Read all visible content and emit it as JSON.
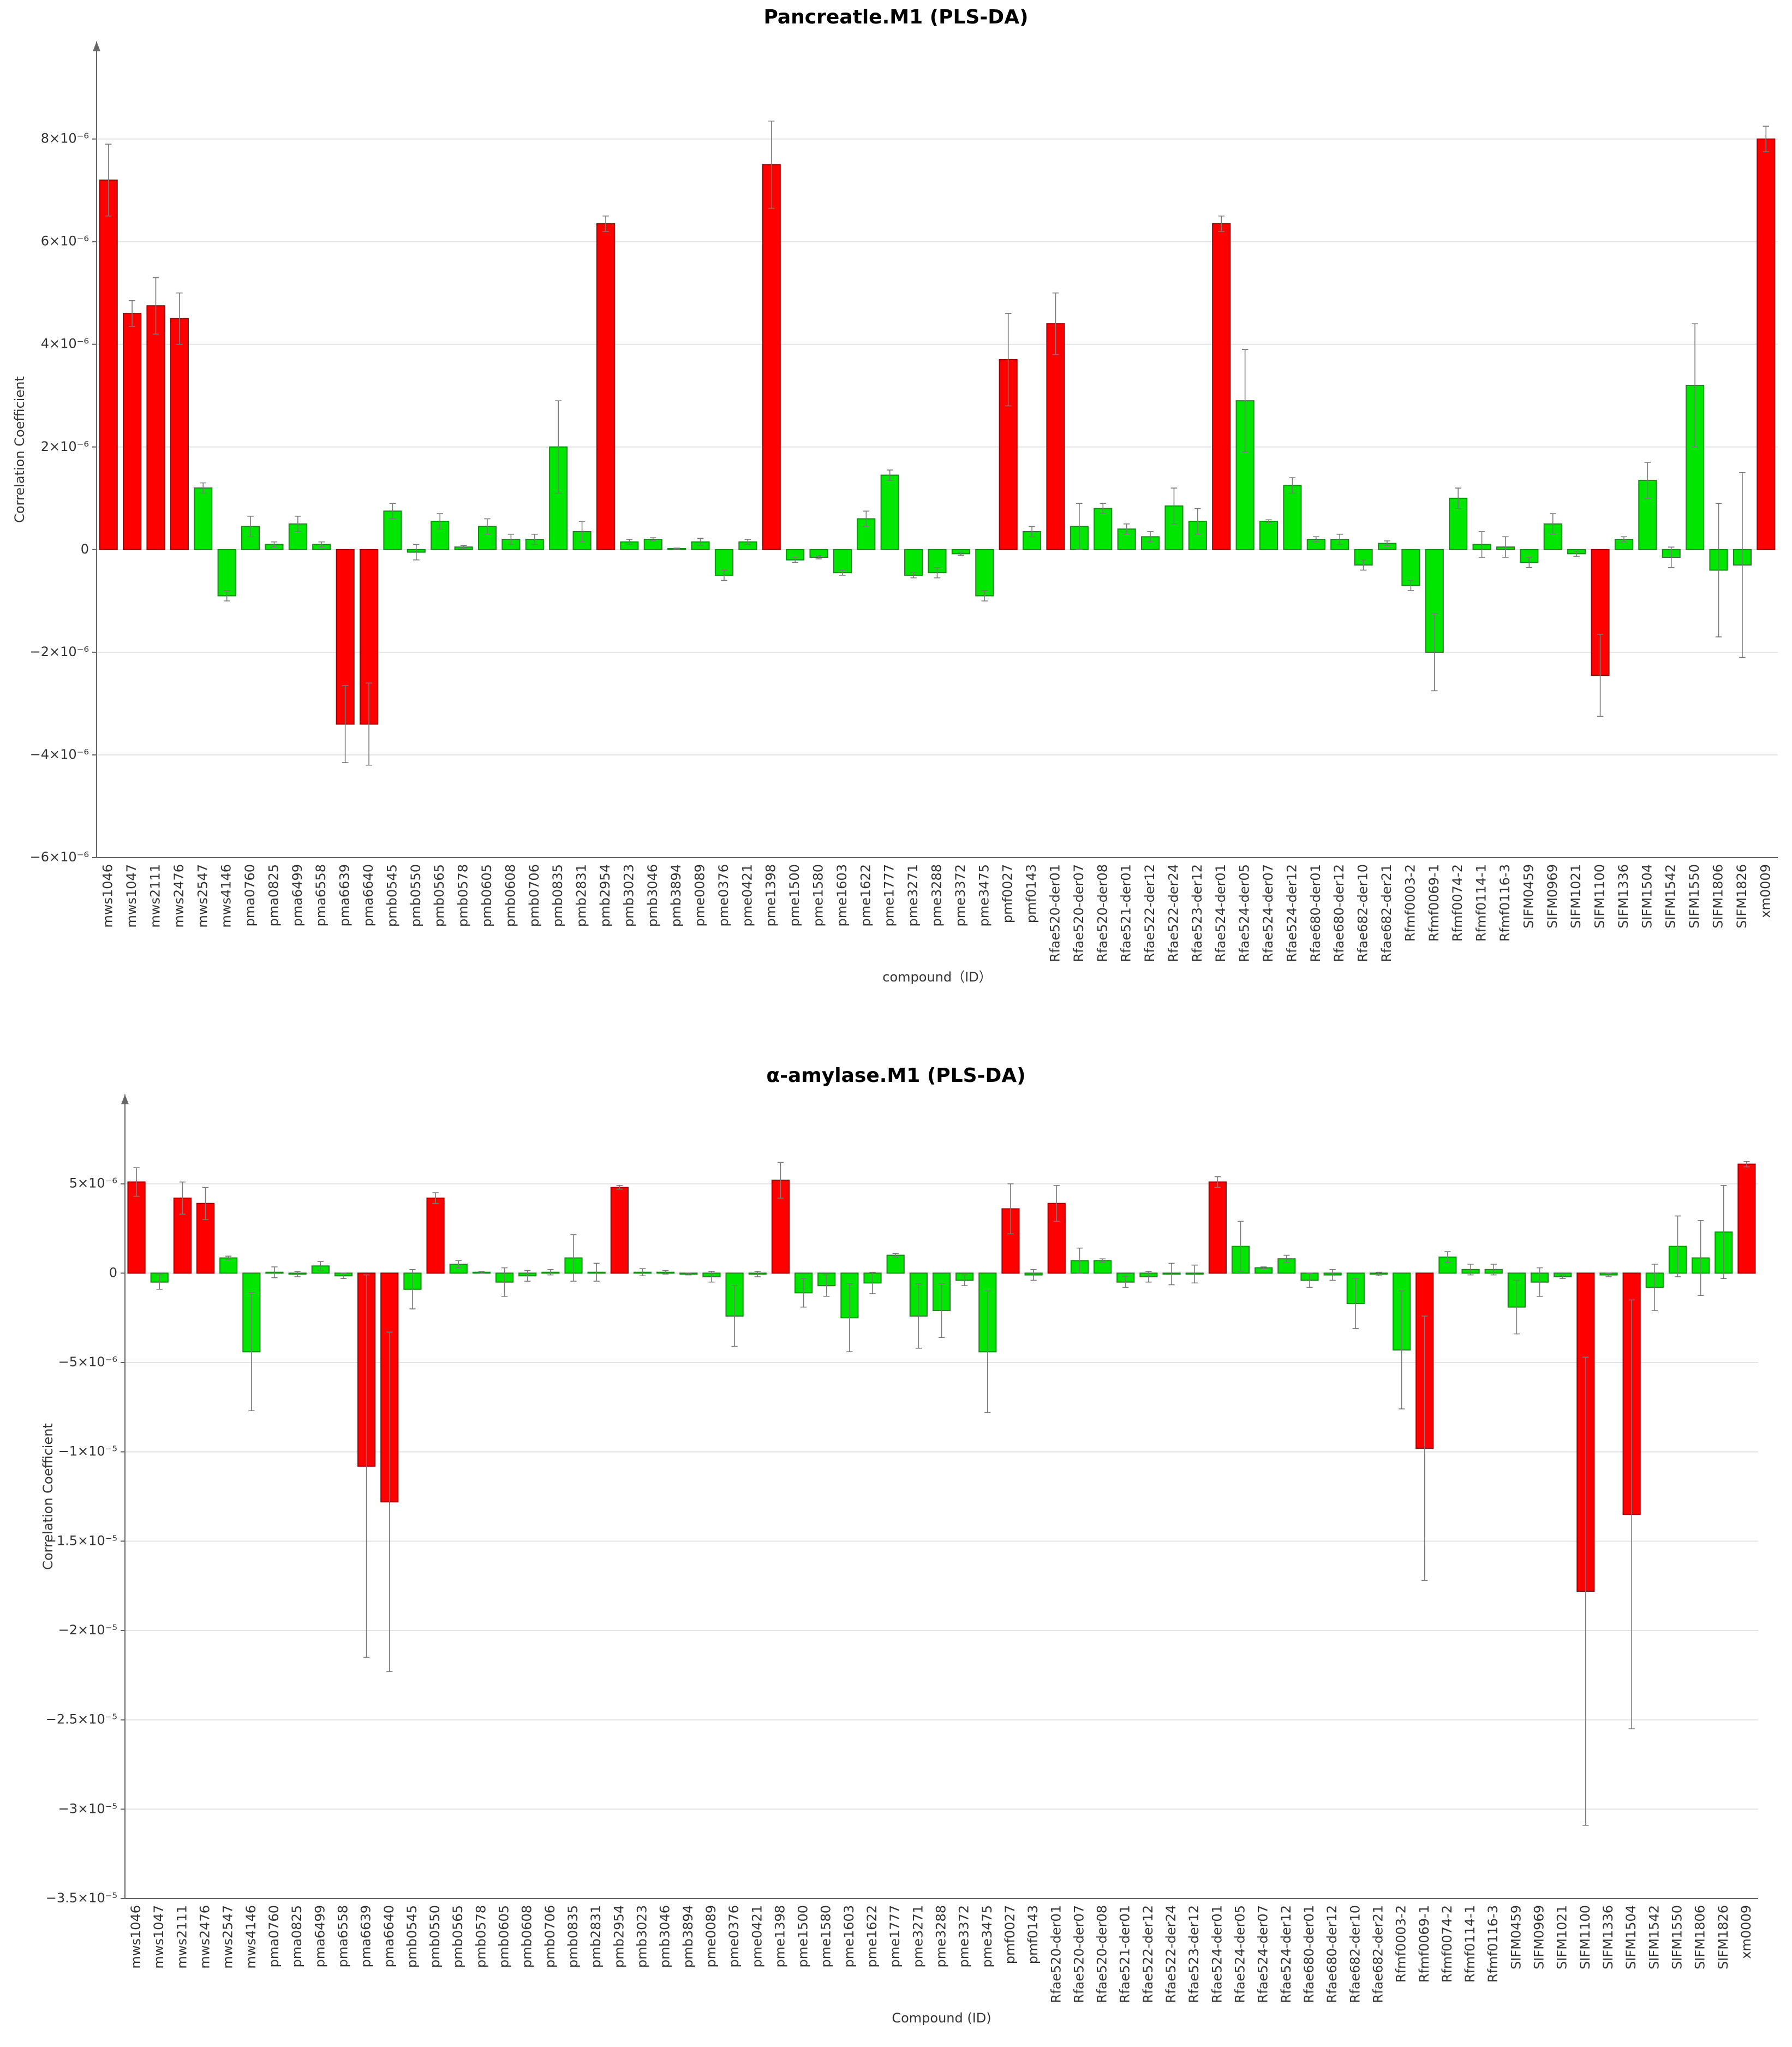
{
  "chart_data": [
    {
      "type": "bar",
      "title": "Pancreatle.M1 (PLS-DA)",
      "x_label": "compound（ID）",
      "y_label": "Correlation Coefficient",
      "categories": [
        "mws1046",
        "mws1047",
        "mws2111",
        "mws2476",
        "mws2547",
        "mws4146",
        "pma0760",
        "pma0825",
        "pma6499",
        "pma6558",
        "pma6639",
        "pma6640",
        "pmb0545",
        "pmb0550",
        "pmb0565",
        "pmb0578",
        "pmb0605",
        "pmb0608",
        "pmb0706",
        "pmb0835",
        "pmb2831",
        "pmb2954",
        "pmb3023",
        "pmb3046",
        "pmb3894",
        "pme0089",
        "pme0376",
        "pme0421",
        "pme1398",
        "pme1500",
        "pme1580",
        "pme1603",
        "pme1622",
        "pme1777",
        "pme3271",
        "pme3288",
        "pme3372",
        "pme3475",
        "pmf0027",
        "pmf0143",
        "Rfae520-der01",
        "Rfae520-der07",
        "Rfae520-der08",
        "Rfae521-der01",
        "Rfae522-der12",
        "Rfae522-der24",
        "Rfae523-der12",
        "Rfae524-der01",
        "Rfae524-der05",
        "Rfae524-der07",
        "Rfae524-der12",
        "Rfae680-der01",
        "Rfae680-der12",
        "Rfae682-der10",
        "Rfae682-der21",
        "Rfmf0003-2",
        "Rfmf0069-1",
        "Rfmf0074-2",
        "Rfmf0114-1",
        "Rfmf0116-3",
        "SIFM0459",
        "SIFM0969",
        "SIFM1021",
        "SIFM1100",
        "SIFM1336",
        "SIFM1504",
        "SIFM1542",
        "SIFM1550",
        "SIFM1806",
        "SIFM1826",
        "xm0009"
      ],
      "values": [
        7.2e-06,
        4.6e-06,
        4.75e-06,
        4.5e-06,
        1.2e-06,
        -9e-07,
        4.5e-07,
        1e-07,
        5e-07,
        1e-07,
        -3.4e-06,
        -3.4e-06,
        7.5e-07,
        -5e-08,
        5.5e-07,
        5e-08,
        4.5e-07,
        2e-07,
        2e-07,
        2e-06,
        3.5e-07,
        6.35e-06,
        1.5e-07,
        2e-07,
        2e-08,
        1.5e-07,
        -5e-07,
        1.5e-07,
        7.5e-06,
        -2e-07,
        -1.5e-07,
        -4.5e-07,
        6e-07,
        1.45e-06,
        -5e-07,
        -4.5e-07,
        -8e-08,
        -9e-07,
        3.7e-06,
        3.5e-07,
        4.4e-06,
        4.5e-07,
        8e-07,
        4e-07,
        2.5e-07,
        8.5e-07,
        5.5e-07,
        6.35e-06,
        2.9e-06,
        5.5e-07,
        1.25e-06,
        2e-07,
        2e-07,
        -3e-07,
        1.2e-07,
        -7e-07,
        -2e-06,
        1e-06,
        1e-07,
        5e-08,
        -2.5e-07,
        5e-07,
        -8e-08,
        -2.45e-06,
        2e-07,
        1.35e-06,
        -1.5e-07,
        3.2e-06,
        -4e-07,
        -3e-07,
        8e-06
      ],
      "errors": [
        7e-07,
        2.5e-07,
        5.5e-07,
        5e-07,
        1e-07,
        1e-07,
        2e-07,
        5e-08,
        1.5e-07,
        5e-08,
        7.5e-07,
        8e-07,
        1.5e-07,
        1.5e-07,
        1.5e-07,
        3e-08,
        1.5e-07,
        1e-07,
        1e-07,
        9e-07,
        2e-07,
        1.5e-07,
        5e-08,
        3e-08,
        1e-08,
        7e-08,
        1e-07,
        5e-08,
        8.5e-07,
        5e-08,
        3e-08,
        5e-08,
        1.5e-07,
        1e-07,
        5e-08,
        1e-07,
        3e-08,
        1e-07,
        9e-07,
        1e-07,
        6e-07,
        4.5e-07,
        1e-07,
        1e-07,
        1e-07,
        3.5e-07,
        2.5e-07,
        1.5e-07,
        1e-06,
        3e-08,
        1.5e-07,
        5e-08,
        1e-07,
        1e-07,
        5e-08,
        1e-07,
        7.5e-07,
        2e-07,
        2.5e-07,
        2e-07,
        1e-07,
        2e-07,
        5e-08,
        8e-07,
        5e-08,
        3.5e-07,
        2e-07,
        1.2e-06,
        1.3e-06,
        1.8e-06,
        2.5e-07
      ],
      "colors": [
        "#ff0000",
        "#ff0000",
        "#ff0000",
        "#ff0000",
        "#00e600",
        "#00e600",
        "#00e600",
        "#00e600",
        "#00e600",
        "#00e600",
        "#ff0000",
        "#ff0000",
        "#00e600",
        "#00e600",
        "#00e600",
        "#00e600",
        "#00e600",
        "#00e600",
        "#00e600",
        "#00e600",
        "#00e600",
        "#ff0000",
        "#00e600",
        "#00e600",
        "#00e600",
        "#00e600",
        "#00e600",
        "#00e600",
        "#ff0000",
        "#00e600",
        "#00e600",
        "#00e600",
        "#00e600",
        "#00e600",
        "#00e600",
        "#00e600",
        "#00e600",
        "#00e600",
        "#ff0000",
        "#00e600",
        "#ff0000",
        "#00e600",
        "#00e600",
        "#00e600",
        "#00e600",
        "#00e600",
        "#00e600",
        "#ff0000",
        "#00e600",
        "#00e600",
        "#00e600",
        "#00e600",
        "#00e600",
        "#00e600",
        "#00e600",
        "#00e600",
        "#00e600",
        "#00e600",
        "#00e600",
        "#00e600",
        "#00e600",
        "#00e600",
        "#00e600",
        "#ff0000",
        "#00e600",
        "#00e600",
        "#00e600",
        "#00e600",
        "#00e600",
        "#00e600",
        "#ff0000"
      ],
      "ylim": [
        -6e-06,
        9.9e-06
      ],
      "yticks": [
        {
          "value": -6e-06,
          "label": "−6×10⁻⁶"
        },
        {
          "value": -4e-06,
          "label": "−4×10⁻⁶"
        },
        {
          "value": -2e-06,
          "label": "−2×10⁻⁶"
        },
        0,
        {
          "value": 2e-06,
          "label": "2×10⁻⁶"
        },
        {
          "value": 4e-06,
          "label": "4×10⁻⁶"
        },
        {
          "value": 6e-06,
          "label": "6×10⁻⁶"
        },
        {
          "value": 8e-06,
          "label": "8×10⁻⁶"
        }
      ],
      "grid": true
    },
    {
      "type": "bar",
      "title": "α-amylase.M1 (PLS-DA)",
      "x_label": "Compound (ID)",
      "y_label": "Correlation Coefficient",
      "categories": [
        "mws1046",
        "mws1047",
        "mws2111",
        "mws2476",
        "mws2547",
        "mws4146",
        "pma0760",
        "pma0825",
        "pma6499",
        "pma6558",
        "pma6639",
        "pma6640",
        "pmb0545",
        "pmb0550",
        "pmb0565",
        "pmb0578",
        "pmb0605",
        "pmb0608",
        "pmb0706",
        "pmb0835",
        "pmb2831",
        "pmb2954",
        "pmb3023",
        "pmb3046",
        "pmb3894",
        "pme0089",
        "pme0376",
        "pme0421",
        "pme1398",
        "pme1500",
        "pme1580",
        "pme1603",
        "pme1622",
        "pme1777",
        "pme3271",
        "pme3288",
        "pme3372",
        "pme3475",
        "pmf0027",
        "pmf0143",
        "Rfae520-der01",
        "Rfae520-der07",
        "Rfae520-der08",
        "Rfae521-der01",
        "Rfae522-der12",
        "Rfae522-der24",
        "Rfae523-der12",
        "Rfae524-der01",
        "Rfae524-der05",
        "Rfae524-der07",
        "Rfae524-der12",
        "Rfae680-der01",
        "Rfae680-der12",
        "Rfae682-der10",
        "Rfae682-der21",
        "Rfmf0003-2",
        "Rfmf0069-1",
        "Rfmf0074-2",
        "Rfmf0114-1",
        "Rfmf0116-3",
        "SIFM0459",
        "SIFM0969",
        "SIFM1021",
        "SIFM1100",
        "SIFM1336",
        "SIFM1504",
        "SIFM1542",
        "SIFM1550",
        "SIFM1806",
        "SIFM1826",
        "xm0009"
      ],
      "values": [
        5.1e-06,
        -5e-07,
        4.2e-06,
        3.9e-06,
        8.5e-07,
        -4.4e-06,
        5e-08,
        -5e-08,
        4e-07,
        -1.5e-07,
        -1.08e-05,
        -1.28e-05,
        -9e-07,
        4.2e-06,
        5e-07,
        5e-08,
        -5e-07,
        -1.5e-07,
        5e-08,
        8.5e-07,
        5e-08,
        4.8e-06,
        5e-08,
        5e-08,
        -5e-08,
        -2e-07,
        -2.4e-06,
        -5e-08,
        5.2e-06,
        -1.1e-06,
        -7e-07,
        -2.5e-06,
        -5.5e-07,
        1e-06,
        -2.4e-06,
        -2.1e-06,
        -4e-07,
        -4.4e-06,
        3.6e-06,
        -1e-07,
        3.9e-06,
        7e-07,
        7e-07,
        -5e-07,
        -2e-07,
        -5e-08,
        -5e-08,
        5.1e-06,
        1.5e-06,
        3e-07,
        8e-07,
        -4e-07,
        -1e-07,
        -1.7e-06,
        -5e-08,
        -4.3e-06,
        -9.8e-06,
        9e-07,
        2e-07,
        2e-07,
        -1.9e-06,
        -5e-07,
        -2e-07,
        -1.78e-05,
        -1e-07,
        -1.35e-05,
        -8e-07,
        1.5e-06,
        8.5e-07,
        2.3e-06,
        6.1e-06
      ],
      "errors": [
        8e-07,
        4e-07,
        9e-07,
        9e-07,
        1e-07,
        3.3e-06,
        3e-07,
        1.5e-07,
        2.5e-07,
        1.5e-07,
        1.07e-05,
        9.5e-06,
        1.1e-06,
        3e-07,
        2e-07,
        5e-08,
        8e-07,
        3e-07,
        1.5e-07,
        1.3e-06,
        5e-07,
        1e-07,
        2e-07,
        1e-07,
        5e-08,
        3e-07,
        1.7e-06,
        1.5e-07,
        1e-06,
        8e-07,
        6e-07,
        1.9e-06,
        6e-07,
        1e-07,
        1.8e-06,
        1.5e-06,
        3e-07,
        3.4e-06,
        1.4e-06,
        3e-07,
        1e-06,
        7e-07,
        1e-07,
        3e-07,
        3e-07,
        6e-07,
        5e-07,
        3e-07,
        1.4e-06,
        5e-08,
        2e-07,
        4e-07,
        3e-07,
        1.4e-06,
        1e-07,
        3.3e-06,
        7.4e-06,
        3e-07,
        3e-07,
        3e-07,
        1.5e-06,
        8e-07,
        1e-07,
        1.31e-05,
        1e-07,
        1.2e-05,
        1.3e-06,
        1.7e-06,
        2.1e-06,
        2.6e-06,
        1.5e-07
      ],
      "colors": [
        "#ff0000",
        "#00e600",
        "#ff0000",
        "#ff0000",
        "#00e600",
        "#00e600",
        "#00e600",
        "#00e600",
        "#00e600",
        "#00e600",
        "#ff0000",
        "#ff0000",
        "#00e600",
        "#ff0000",
        "#00e600",
        "#00e600",
        "#00e600",
        "#00e600",
        "#00e600",
        "#00e600",
        "#00e600",
        "#ff0000",
        "#00e600",
        "#00e600",
        "#00e600",
        "#00e600",
        "#00e600",
        "#00e600",
        "#ff0000",
        "#00e600",
        "#00e600",
        "#00e600",
        "#00e600",
        "#00e600",
        "#00e600",
        "#00e600",
        "#00e600",
        "#00e600",
        "#ff0000",
        "#00e600",
        "#ff0000",
        "#00e600",
        "#00e600",
        "#00e600",
        "#00e600",
        "#00e600",
        "#00e600",
        "#ff0000",
        "#00e600",
        "#00e600",
        "#00e600",
        "#00e600",
        "#00e600",
        "#00e600",
        "#00e600",
        "#00e600",
        "#ff0000",
        "#00e600",
        "#00e600",
        "#00e600",
        "#00e600",
        "#00e600",
        "#00e600",
        "#ff0000",
        "#00e600",
        "#ff0000",
        "#00e600",
        "#00e600",
        "#00e600",
        "#00e600",
        "#ff0000"
      ],
      "ylim": [
        -3.5e-05,
        1e-05
      ],
      "yticks": [
        {
          "value": -3.5e-05,
          "label": "−3.5×10⁻⁵"
        },
        {
          "value": -3e-05,
          "label": "−3×10⁻⁵"
        },
        {
          "value": -2.5e-05,
          "label": "−2.5×10⁻⁵"
        },
        {
          "value": -2e-05,
          "label": "−2×10⁻⁵"
        },
        {
          "value": -1.5e-05,
          "label": "−1.5×10⁻⁵"
        },
        {
          "value": -1e-05,
          "label": "−1×10⁻⁵"
        },
        {
          "value": -5e-06,
          "label": "−5×10⁻⁶"
        },
        0,
        {
          "value": 5e-06,
          "label": "5×10⁻⁶"
        }
      ],
      "grid": true
    }
  ]
}
